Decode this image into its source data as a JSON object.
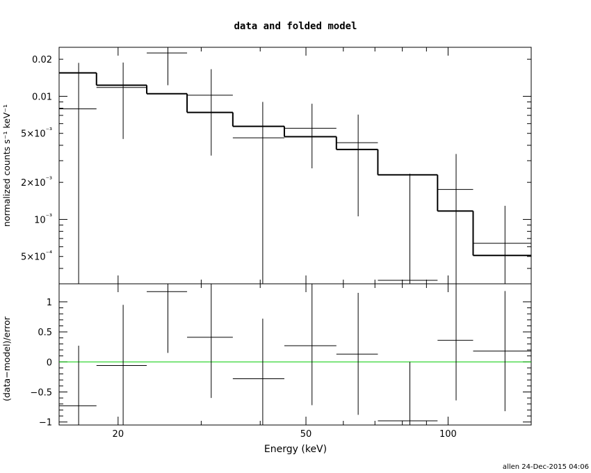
{
  "chart_data": [
    {
      "panel": "top",
      "type": "line",
      "title": "data and folded model",
      "ylabel": "normalized counts s⁻¹ keV⁻¹",
      "xscale": "log",
      "yscale": "log",
      "xlim": [
        15,
        150
      ],
      "ylim": [
        0.0003,
        0.025
      ],
      "ytick_labels": [
        "0.02",
        "0.01",
        "5×10⁻³",
        "2×10⁻³",
        "10⁻³",
        "5×10⁻⁴"
      ],
      "ytick_values": [
        0.02,
        0.01,
        0.005,
        0.002,
        0.001,
        0.0005
      ],
      "series": [
        {
          "role": "data",
          "x": [
            16.5,
            20.5,
            25.5,
            31.5,
            40.5,
            51.5,
            64.5,
            83,
            104,
            132
          ],
          "xlo": [
            15,
            18,
            23,
            28,
            35,
            45,
            58,
            71,
            95,
            113
          ],
          "xhi": [
            18,
            23,
            28,
            35,
            45,
            58,
            71,
            95,
            113,
            150
          ],
          "y": [
            0.0079,
            0.0118,
            0.0225,
            0.0102,
            0.0046,
            0.0055,
            0.0042,
            0.00032,
            0.00175,
            0.00064
          ],
          "ylo": [
            0.0003,
            0.0045,
            0.0123,
            0.0033,
            0.0003,
            0.0026,
            0.00106,
            0.0003,
            0.0003,
            0.0003
          ],
          "yhi": [
            0.0187,
            0.0188,
            0.025,
            0.0166,
            0.009,
            0.0087,
            0.0071,
            0.00235,
            0.0034,
            0.00129
          ]
        },
        {
          "role": "folded model",
          "xlo": [
            15,
            18,
            23,
            28,
            35,
            45,
            58,
            71,
            95,
            113
          ],
          "xhi": [
            18,
            23,
            28,
            35,
            45,
            58,
            71,
            95,
            113,
            150
          ],
          "y": [
            0.0155,
            0.0123,
            0.0105,
            0.0074,
            0.0057,
            0.0047,
            0.0037,
            0.0023,
            0.00117,
            0.00051
          ]
        }
      ]
    },
    {
      "panel": "bottom",
      "type": "scatter",
      "xlabel": "Energy (keV)",
      "ylabel": "(data−model)/error",
      "xscale": "log",
      "xlim": [
        15,
        150
      ],
      "ylim": [
        -1.05,
        1.3
      ],
      "xtick_labels": [
        "20",
        "50",
        "100"
      ],
      "xtick_values": [
        20,
        50,
        100
      ],
      "ytick_labels": [
        "1",
        "0.5",
        "0",
        "−0.5",
        "−1"
      ],
      "ytick_values": [
        1,
        0.5,
        0,
        -0.5,
        -1
      ],
      "reference_line": {
        "y": 0,
        "color": "#00cc00"
      },
      "series": [
        {
          "role": "residuals",
          "x": [
            16.5,
            20.5,
            25.5,
            31.5,
            40.5,
            51.5,
            64.5,
            83,
            104,
            132
          ],
          "xlo": [
            15,
            18,
            23,
            28,
            35,
            45,
            58,
            71,
            95,
            113
          ],
          "xhi": [
            18,
            23,
            28,
            35,
            45,
            58,
            71,
            95,
            113,
            150
          ],
          "y": [
            -0.73,
            -0.06,
            1.17,
            0.41,
            -0.28,
            0.27,
            0.13,
            -0.98,
            0.36,
            0.18
          ],
          "ylo": [
            -1.05,
            -1.05,
            0.15,
            -0.6,
            -1.05,
            -0.72,
            -0.88,
            -1.05,
            -0.64,
            -0.82
          ],
          "yhi": [
            0.27,
            0.95,
            1.3,
            1.3,
            0.72,
            1.3,
            1.15,
            0.0,
            1.3,
            1.18
          ]
        }
      ]
    }
  ],
  "footer": {
    "stamp": "allen 24-Dec-2015 04:06"
  }
}
